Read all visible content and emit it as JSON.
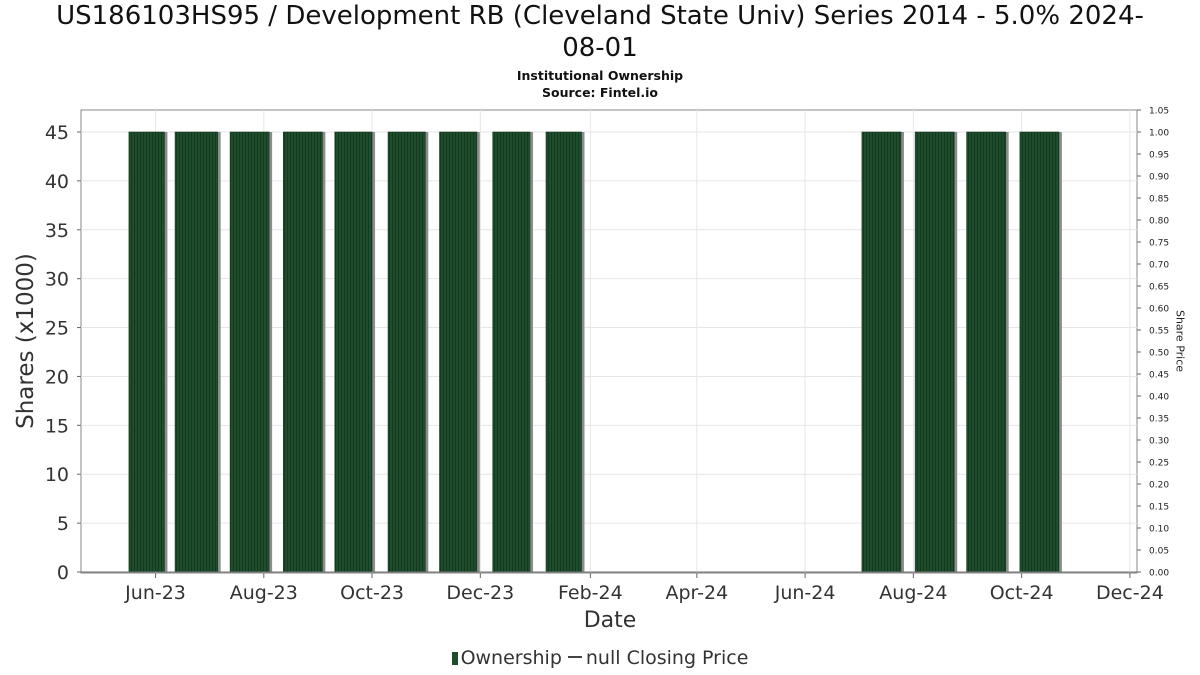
{
  "title_lines": [
    "US186103HS95 / Development RB (Cleveland State Univ) Series 2014 - 5.0% 2024-",
    "08-01"
  ],
  "subtitle_lines": [
    "Institutional Ownership",
    "Source: Fintel.io"
  ],
  "colors": {
    "bar": "#1e4d2b",
    "bar_shadow": "#8c8c8c",
    "grid": "#e6e6e6",
    "frame": "#888888"
  },
  "legend": {
    "ownership_label": "Ownership",
    "price_label": "null Closing Price"
  },
  "chart_data": {
    "type": "bar",
    "title": "US186103HS95 / Development RB (Cleveland State Univ) Series 2014 - 5.0% 2024-08-01",
    "subtitle": "Institutional Ownership Source: Fintel.io",
    "xlabel": "Date",
    "ylabel": "Shares (x1000)",
    "y2label": "Share Price",
    "ylim": [
      0,
      47
    ],
    "y2lim": [
      0,
      1.05
    ],
    "yticks": [
      0,
      5,
      10,
      15,
      20,
      25,
      30,
      35,
      40,
      45
    ],
    "y2ticks": [
      "0.00",
      "0.05",
      "0.10",
      "0.15",
      "0.20",
      "0.25",
      "0.30",
      "0.35",
      "0.40",
      "0.45",
      "0.50",
      "0.55",
      "0.60",
      "0.65",
      "0.70",
      "0.75",
      "0.80",
      "0.85",
      "0.90",
      "0.95",
      "1.00",
      "1.05"
    ],
    "xlim": [
      "2023-04-20",
      "2024-12-05"
    ],
    "xticks": [
      {
        "date": "2023-06-01",
        "label": "Jun-23"
      },
      {
        "date": "2023-08-01",
        "label": "Aug-23"
      },
      {
        "date": "2023-10-01",
        "label": "Oct-23"
      },
      {
        "date": "2023-12-01",
        "label": "Dec-23"
      },
      {
        "date": "2024-02-01",
        "label": "Feb-24"
      },
      {
        "date": "2024-04-01",
        "label": "Apr-24"
      },
      {
        "date": "2024-06-01",
        "label": "Jun-24"
      },
      {
        "date": "2024-08-01",
        "label": "Aug-24"
      },
      {
        "date": "2024-10-01",
        "label": "Oct-24"
      },
      {
        "date": "2024-12-01",
        "label": "Dec-24"
      }
    ],
    "grid": true,
    "legend_position": "bottom",
    "series": [
      {
        "name": "Ownership",
        "bars": [
          {
            "start": "2023-05-17",
            "end": "2023-06-06",
            "value": 45
          },
          {
            "start": "2023-06-12",
            "end": "2023-07-06",
            "value": 45
          },
          {
            "start": "2023-07-13",
            "end": "2023-08-04",
            "value": 45
          },
          {
            "start": "2023-08-12",
            "end": "2023-09-03",
            "value": 45
          },
          {
            "start": "2023-09-10",
            "end": "2023-10-01",
            "value": 45
          },
          {
            "start": "2023-10-10",
            "end": "2023-10-31",
            "value": 45
          },
          {
            "start": "2023-11-08",
            "end": "2023-11-29",
            "value": 45
          },
          {
            "start": "2023-12-08",
            "end": "2023-12-29",
            "value": 45
          },
          {
            "start": "2024-01-07",
            "end": "2024-01-27",
            "value": 45
          },
          {
            "start": "2024-07-03",
            "end": "2024-07-25",
            "value": 45
          },
          {
            "start": "2024-08-02",
            "end": "2024-08-24",
            "value": 45
          },
          {
            "start": "2024-08-31",
            "end": "2024-09-22",
            "value": 45
          },
          {
            "start": "2024-09-30",
            "end": "2024-10-22",
            "value": 45
          }
        ]
      },
      {
        "name": "null Closing Price",
        "values": []
      }
    ]
  }
}
